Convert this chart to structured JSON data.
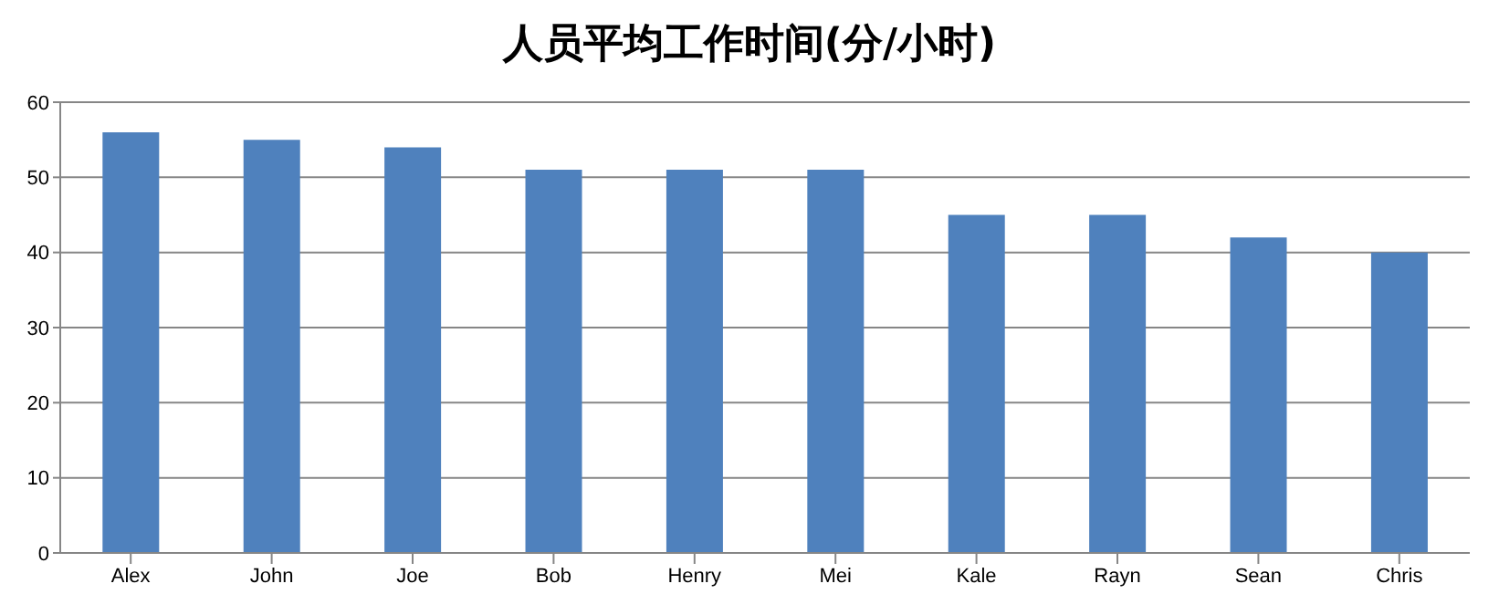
{
  "chart_data": {
    "type": "bar",
    "title": "人员平均工作时间(分/小时)",
    "categories": [
      "Alex",
      "John",
      "Joe",
      "Bob",
      "Henry",
      "Mei",
      "Kale",
      "Rayn",
      "Sean",
      "Chris"
    ],
    "values": [
      56,
      55,
      54,
      51,
      51,
      51,
      45,
      45,
      42,
      40
    ],
    "color": "#4f81bd",
    "ylim": [
      0,
      60
    ],
    "yticks": [
      0,
      10,
      20,
      30,
      40,
      50,
      60
    ],
    "grid": "y"
  }
}
